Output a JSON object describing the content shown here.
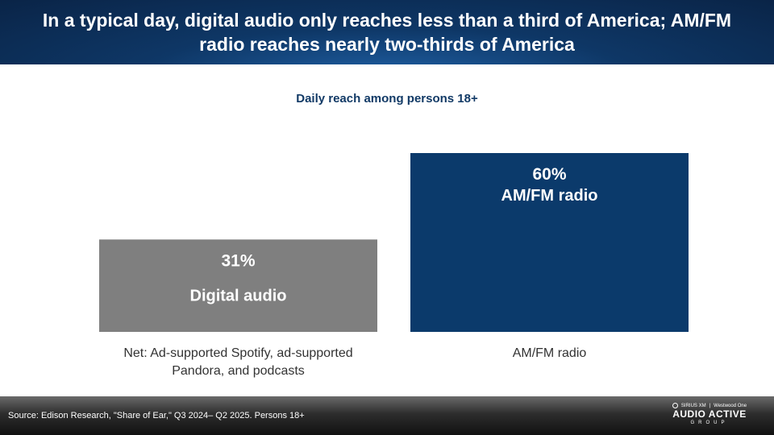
{
  "header": {
    "title": "In a typical day, digital audio only reaches less than a third of America; AM/FM radio reaches nearly two-thirds of America"
  },
  "chart_data": {
    "type": "bar",
    "title": "Daily reach among persons 18+",
    "categories": [
      "Net: Ad-supported Spotify, ad-supported Pandora, and podcasts",
      "AM/FM radio"
    ],
    "values": [
      31,
      60
    ],
    "value_labels": [
      "31%",
      "60%"
    ],
    "bar_labels": [
      "Digital audio",
      "AM/FM radio"
    ],
    "colors": [
      "#7f7f7f",
      "#0b3a6b"
    ],
    "unit": "%",
    "ylim": [
      0,
      60
    ],
    "grid": false
  },
  "footer": {
    "source": "Source: Edison Research, \"Share of Ear,\" Q3 2024– Q2 2025. Persons 18+",
    "logo": {
      "brand_left": "SIRIUS XM",
      "brand_right": "Westwood One",
      "main": "AUDIO ACTIVE",
      "sub": "GROUP"
    }
  }
}
